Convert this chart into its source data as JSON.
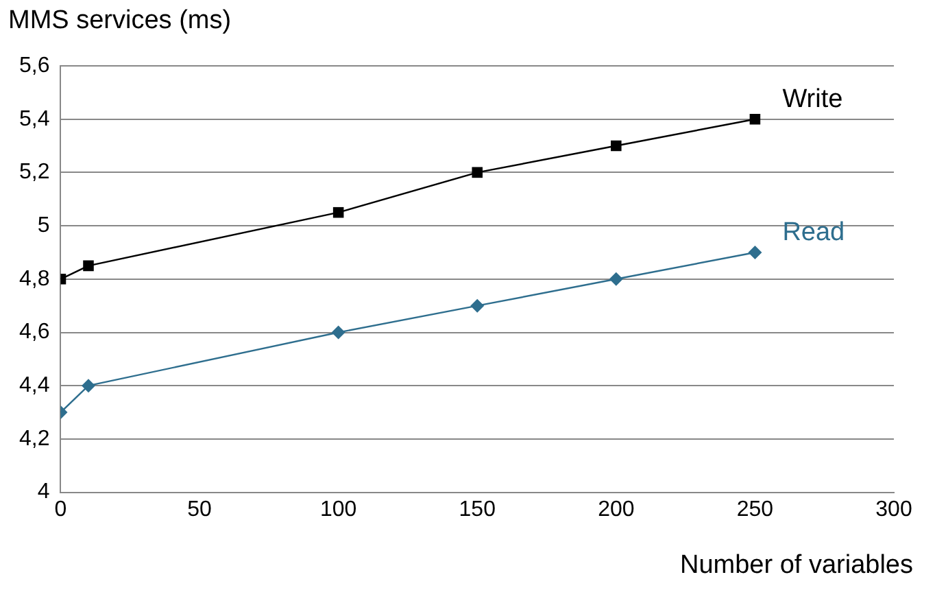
{
  "chart_data": {
    "type": "line",
    "ylabel": "MMS services (ms)",
    "xlabel": "Number of variables",
    "x": [
      0,
      10,
      100,
      150,
      200,
      250
    ],
    "series": [
      {
        "name": "Write",
        "color": "#000000",
        "marker": "square",
        "values": [
          4.8,
          4.85,
          5.05,
          5.2,
          5.3,
          5.4
        ]
      },
      {
        "name": "Read",
        "color": "#2e6e8e",
        "marker": "diamond",
        "values": [
          4.3,
          4.4,
          4.6,
          4.7,
          4.8,
          4.9
        ]
      }
    ],
    "xlim": [
      0,
      300
    ],
    "xticks": [
      0,
      50,
      100,
      150,
      200,
      250,
      300
    ],
    "ylim": [
      4,
      5.6
    ],
    "yticks": [
      4,
      {
        "value": 4.2,
        "label": "4,2"
      },
      {
        "value": 4.4,
        "label": "4,4"
      },
      {
        "value": 4.6,
        "label": "4,6"
      },
      {
        "value": 4.8,
        "label": "4,8"
      },
      5,
      {
        "value": 5.2,
        "label": "5,2"
      },
      {
        "value": 5.4,
        "label": "5,4"
      },
      {
        "value": 5.6,
        "label": "5,6"
      }
    ],
    "grid": "y",
    "legend": false,
    "line_style": "solid"
  }
}
